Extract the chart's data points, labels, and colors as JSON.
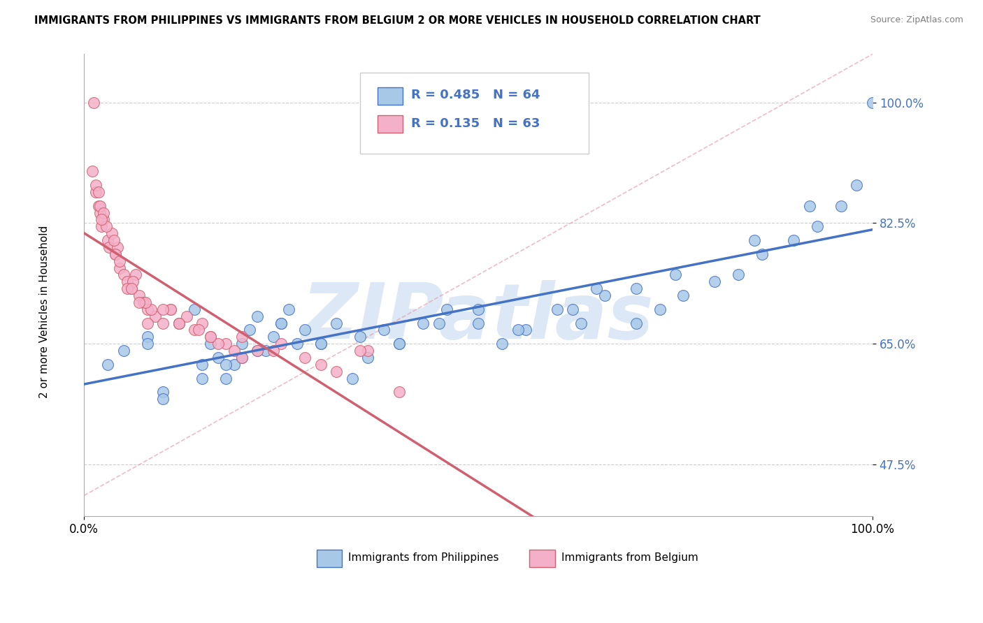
{
  "title": "IMMIGRANTS FROM PHILIPPINES VS IMMIGRANTS FROM BELGIUM 2 OR MORE VEHICLES IN HOUSEHOLD CORRELATION CHART",
  "source": "Source: ZipAtlas.com",
  "ylabel": "2 or more Vehicles in Household",
  "xlim": [
    0,
    100
  ],
  "ylim": [
    40,
    107
  ],
  "yticks": [
    47.5,
    65.0,
    82.5,
    100.0
  ],
  "xtick_labels": [
    "0.0%",
    "100.0%"
  ],
  "ytick_labels": [
    "47.5%",
    "65.0%",
    "82.5%",
    "100.0%"
  ],
  "legend_R1": "R = 0.485",
  "legend_N1": "N = 64",
  "legend_R2": "R = 0.135",
  "legend_N2": "N = 63",
  "color_philippines": "#a8c8e8",
  "color_belgium": "#f4b0c8",
  "color_line_philippines": "#4472c4",
  "color_line_belgium": "#d06070",
  "watermark_color": "#dce8f5",
  "philippines_x": [
    3,
    5,
    8,
    10,
    12,
    14,
    15,
    16,
    17,
    18,
    19,
    20,
    21,
    22,
    23,
    24,
    25,
    26,
    27,
    28,
    30,
    32,
    34,
    36,
    38,
    40,
    43,
    46,
    50,
    53,
    56,
    60,
    63,
    66,
    70,
    73,
    76,
    80,
    83,
    86,
    90,
    93,
    96,
    98,
    100,
    35,
    55,
    25,
    45,
    62,
    20,
    15,
    10,
    50,
    65,
    75,
    85,
    92,
    40,
    30,
    22,
    18,
    8,
    70
  ],
  "philippines_y": [
    62,
    64,
    66,
    58,
    68,
    70,
    62,
    65,
    63,
    60,
    62,
    65,
    67,
    69,
    64,
    66,
    68,
    70,
    65,
    67,
    65,
    68,
    60,
    63,
    67,
    65,
    68,
    70,
    68,
    65,
    67,
    70,
    68,
    72,
    73,
    70,
    72,
    74,
    75,
    78,
    80,
    82,
    85,
    88,
    100,
    66,
    67,
    68,
    68,
    70,
    63,
    60,
    57,
    70,
    73,
    75,
    80,
    85,
    65,
    65,
    64,
    62,
    65,
    68
  ],
  "belgium_x": [
    1.0,
    1.2,
    1.5,
    1.8,
    2.0,
    2.2,
    2.5,
    3.0,
    3.2,
    3.5,
    4.0,
    4.5,
    5.0,
    5.5,
    6.0,
    6.5,
    7.0,
    7.5,
    8.0,
    9.0,
    10.0,
    11.0,
    12.0,
    13.0,
    14.0,
    15.0,
    16.0,
    18.0,
    20.0,
    22.0,
    25.0,
    28.0,
    32.0,
    36.0,
    40.0,
    1.5,
    2.8,
    4.2,
    6.2,
    8.5,
    11.0,
    14.5,
    19.0,
    24.0,
    30.0,
    2.0,
    3.8,
    5.5,
    7.8,
    12.0,
    17.0,
    2.5,
    4.0,
    8.0,
    1.8,
    35.0,
    20.0,
    10.0,
    16.0,
    7.0,
    4.5,
    2.2,
    6.0
  ],
  "belgium_y": [
    90,
    100,
    87,
    85,
    84,
    82,
    83,
    80,
    79,
    81,
    78,
    76,
    75,
    74,
    73,
    75,
    72,
    71,
    70,
    69,
    68,
    70,
    68,
    69,
    67,
    68,
    66,
    65,
    66,
    64,
    65,
    63,
    61,
    64,
    58,
    88,
    82,
    79,
    74,
    70,
    70,
    67,
    64,
    64,
    62,
    85,
    80,
    73,
    71,
    68,
    65,
    84,
    78,
    68,
    87,
    64,
    63,
    70,
    66,
    71,
    77,
    83,
    73
  ]
}
